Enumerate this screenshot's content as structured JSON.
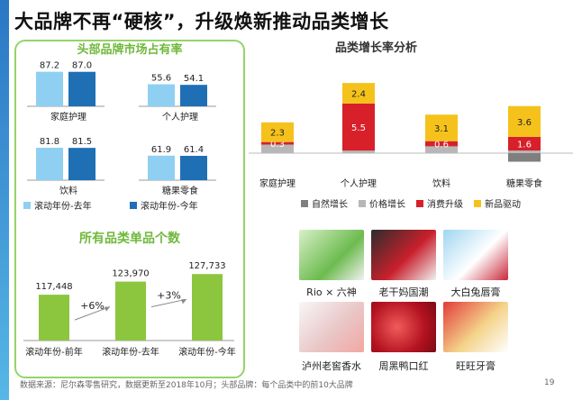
{
  "title": "大品牌不再“硬核”，升级焕新推动品类增长",
  "left_panel": {
    "market_share_title": "头部品牌市场占有率",
    "count_title": "所有品类单品个数"
  },
  "right_panel": {
    "growth_title": "品类增长率分析"
  },
  "products": [
    {
      "label": "Rio × 六神",
      "icon": "rio-liushen-product-photo"
    },
    {
      "label": "老干妈国潮",
      "icon": "laoganma-product-photo"
    },
    {
      "label": "大白兔唇膏",
      "icon": "white-rabbit-lipbalm-photo"
    },
    {
      "label": "泸州老窖香水",
      "icon": "luzhou-perfume-photo"
    },
    {
      "label": "周黑鸭口红",
      "icon": "zhouheiya-lipstick-photo"
    },
    {
      "label": "旺旺牙膏",
      "icon": "wangwang-toothpaste-photo"
    }
  ],
  "footer": {
    "source": "数据来源：尼尔森零售研究，数据更新至2018年10月；头部品牌：每个品类中的前10大品牌",
    "page": "19"
  },
  "chart_data": [
    {
      "type": "bar",
      "title": "头部品牌市场占有率",
      "categories": [
        "家庭护理",
        "个人护理",
        "饮料",
        "糖果零食"
      ],
      "series": [
        {
          "name": "滚动年份-去年",
          "values": [
            87.2,
            55.6,
            81.8,
            61.9
          ],
          "color": "#8fd0f2"
        },
        {
          "name": "滚动年份-今年",
          "values": [
            87.0,
            54.1,
            81.5,
            61.4
          ],
          "color": "#1f6fb5"
        }
      ],
      "legend": "bottom"
    },
    {
      "type": "bar",
      "title": "所有品类单品个数",
      "categories": [
        "滚动年份-前年",
        "滚动年份-去年",
        "滚动年份-今年"
      ],
      "values": [
        117448,
        123970,
        127733
      ],
      "value_labels": [
        "117,448",
        "123,970",
        "127,733"
      ],
      "annotations": [
        "+6%",
        "+3%"
      ],
      "color": "#8cc63e"
    },
    {
      "type": "bar",
      "stacked": true,
      "title": "品类增长率分析",
      "categories": [
        "家庭护理",
        "个人护理",
        "饮料",
        "糖果零食"
      ],
      "series": [
        {
          "name": "自然增长",
          "values": [
            null,
            null,
            null,
            -1.0
          ],
          "color": "#7f7f7f"
        },
        {
          "name": "价格增长",
          "values": [
            1.0,
            0.3,
            0.8,
            0.3
          ],
          "color": "#b7b7b7"
        },
        {
          "name": "消费升级",
          "values": [
            0.3,
            5.5,
            0.6,
            1.6
          ],
          "color": "#d7202a"
        },
        {
          "name": "新品驱动",
          "values": [
            2.3,
            2.4,
            3.1,
            3.6
          ],
          "color": "#f5c21b"
        }
      ],
      "data_labels": [
        [
          "",
          "",
          "",
          ""
        ],
        [
          "",
          "",
          "",
          ""
        ],
        [
          "0.3",
          "5.5",
          "0.6",
          "1.6"
        ],
        [
          "2.3",
          "2.4",
          "3.1",
          "3.6"
        ]
      ],
      "legend": "bottom"
    }
  ]
}
